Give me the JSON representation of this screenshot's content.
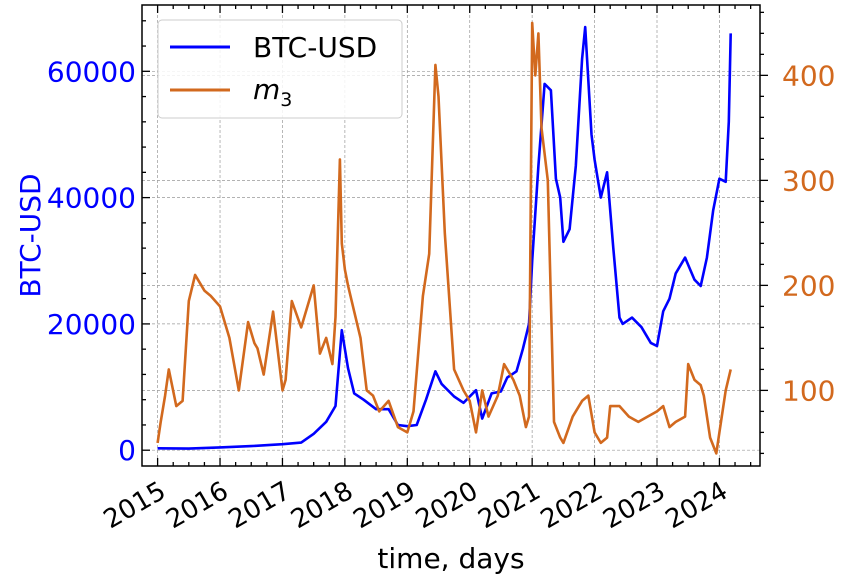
{
  "chart_data": {
    "type": "line",
    "xlabel": "time, days",
    "ylabel_left": "BTC-USD",
    "ylabel_right": "",
    "xlim": [
      2014.75,
      2024.65
    ],
    "ylim_left": [
      -2500,
      70500
    ],
    "ylim_right": [
      28,
      467
    ],
    "grid": true,
    "legend_position": "top-left",
    "x_ticks": [
      2015,
      2016,
      2017,
      2018,
      2019,
      2020,
      2021,
      2022,
      2023,
      2024
    ],
    "x_tick_labels": [
      "2015",
      "2016",
      "2017",
      "2018",
      "2019",
      "2020",
      "2021",
      "2022",
      "2023",
      "2024"
    ],
    "y_ticks_left": [
      0,
      20000,
      40000,
      60000
    ],
    "y_tick_labels_left": [
      "0",
      "20000",
      "40000",
      "60000"
    ],
    "y_ticks_right": [
      100,
      200,
      300,
      400
    ],
    "y_tick_labels_right": [
      "100",
      "200",
      "300",
      "400"
    ],
    "colors": {
      "btc": "#0000ff",
      "m3": "#d2691e",
      "grid": "#999999"
    },
    "series": [
      {
        "name": "BTC-USD",
        "axis": "left",
        "color": "#0000ff",
        "x": [
          2015.0,
          2015.5,
          2016.0,
          2016.5,
          2017.0,
          2017.3,
          2017.5,
          2017.7,
          2017.85,
          2017.95,
          2018.05,
          2018.15,
          2018.3,
          2018.5,
          2018.7,
          2018.85,
          2019.0,
          2019.15,
          2019.3,
          2019.45,
          2019.55,
          2019.75,
          2019.9,
          2020.1,
          2020.2,
          2020.35,
          2020.5,
          2020.6,
          2020.75,
          2020.85,
          2020.95,
          2021.0,
          2021.1,
          2021.2,
          2021.3,
          2021.38,
          2021.45,
          2021.5,
          2021.6,
          2021.7,
          2021.8,
          2021.85,
          2021.95,
          2022.0,
          2022.1,
          2022.2,
          2022.3,
          2022.4,
          2022.45,
          2022.6,
          2022.75,
          2022.9,
          2023.0,
          2023.1,
          2023.2,
          2023.3,
          2023.45,
          2023.6,
          2023.7,
          2023.8,
          2023.9,
          2024.0,
          2024.1,
          2024.15,
          2024.18
        ],
        "values": [
          300,
          250,
          450,
          650,
          950,
          1200,
          2600,
          4500,
          7000,
          19000,
          13000,
          9000,
          8000,
          6500,
          6500,
          4000,
          3800,
          4000,
          8000,
          12500,
          10500,
          8500,
          7500,
          9500,
          5000,
          9000,
          9300,
          11500,
          12500,
          16000,
          20000,
          30000,
          45000,
          58000,
          57000,
          43000,
          40000,
          33000,
          35000,
          45000,
          62000,
          67000,
          50000,
          46000,
          40000,
          44000,
          32000,
          21000,
          20000,
          21000,
          19500,
          17000,
          16500,
          22000,
          24000,
          28000,
          30500,
          27000,
          26000,
          30500,
          38000,
          43000,
          42500,
          52000,
          66000
        ]
      },
      {
        "name": "m_3",
        "axis": "right",
        "color": "#d2691e",
        "x": [
          2015.0,
          2015.05,
          2015.12,
          2015.18,
          2015.3,
          2015.4,
          2015.5,
          2015.6,
          2015.75,
          2015.85,
          2016.0,
          2016.15,
          2016.3,
          2016.45,
          2016.55,
          2016.6,
          2016.7,
          2016.85,
          2017.0,
          2017.05,
          2017.15,
          2017.3,
          2017.5,
          2017.6,
          2017.7,
          2017.8,
          2017.85,
          2017.92,
          2017.95,
          2018.0,
          2018.05,
          2018.15,
          2018.25,
          2018.35,
          2018.45,
          2018.55,
          2018.7,
          2018.85,
          2019.0,
          2019.1,
          2019.25,
          2019.35,
          2019.45,
          2019.5,
          2019.6,
          2019.75,
          2019.9,
          2020.0,
          2020.1,
          2020.2,
          2020.3,
          2020.45,
          2020.55,
          2020.7,
          2020.8,
          2020.9,
          2020.95,
          2021.0,
          2021.05,
          2021.1,
          2021.15,
          2021.25,
          2021.35,
          2021.45,
          2021.5,
          2021.65,
          2021.8,
          2021.9,
          2022.0,
          2022.1,
          2022.2,
          2022.25,
          2022.4,
          2022.55,
          2022.7,
          2022.85,
          2023.0,
          2023.1,
          2023.2,
          2023.3,
          2023.45,
          2023.5,
          2023.6,
          2023.7,
          2023.75,
          2023.85,
          2023.95,
          2024.0,
          2024.1,
          2024.18
        ],
        "values": [
          50,
          70,
          95,
          120,
          85,
          90,
          185,
          210,
          195,
          190,
          180,
          150,
          100,
          165,
          145,
          140,
          115,
          175,
          100,
          110,
          185,
          160,
          200,
          135,
          150,
          125,
          170,
          320,
          240,
          215,
          200,
          175,
          150,
          100,
          95,
          80,
          90,
          65,
          60,
          80,
          190,
          230,
          410,
          380,
          250,
          120,
          100,
          90,
          60,
          100,
          75,
          95,
          125,
          110,
          95,
          65,
          75,
          450,
          400,
          440,
          350,
          300,
          70,
          55,
          50,
          75,
          90,
          95,
          60,
          50,
          55,
          85,
          85,
          75,
          70,
          75,
          80,
          85,
          65,
          70,
          75,
          125,
          110,
          105,
          95,
          55,
          40,
          60,
          100,
          120
        ]
      }
    ],
    "legend": [
      {
        "label": "BTC-USD",
        "color": "#0000ff"
      },
      {
        "label_base": "m",
        "label_sub": "3",
        "color": "#d2691e"
      }
    ]
  }
}
